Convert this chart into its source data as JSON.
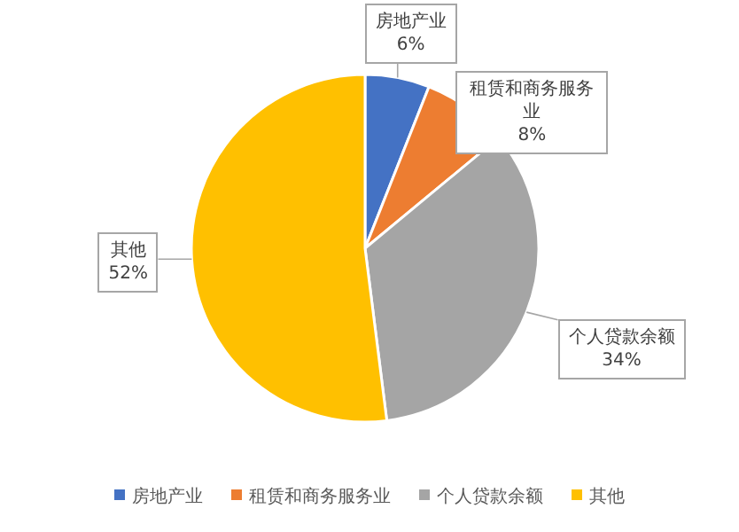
{
  "chart_data": {
    "type": "pie",
    "categories": [
      "房地产业",
      "租赁和商务服务业",
      "个人贷款余额",
      "其他"
    ],
    "values": [
      6,
      8,
      34,
      52
    ],
    "colors": [
      "#4472c4",
      "#ed7d31",
      "#a5a5a5",
      "#ffc000"
    ],
    "value_labels": [
      "6%",
      "8%",
      "34%",
      "52%"
    ],
    "legend": "bottom"
  }
}
